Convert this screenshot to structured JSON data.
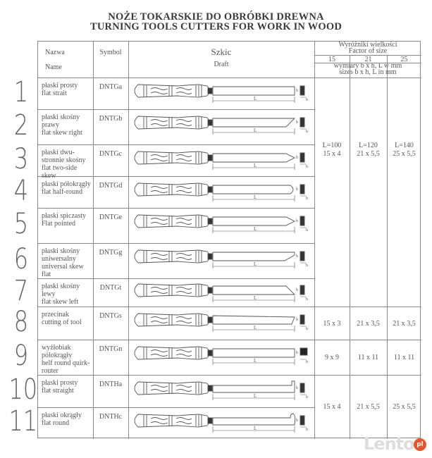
{
  "title": {
    "line1": "NOŻE TOKARSKIE DO OBRÓBKI DREWNA",
    "line2": "TURNING TOOLS CUTTERS FOR WORK IN WOOD"
  },
  "header": {
    "name_pl": "Nazwa",
    "name_en": "Name",
    "symbol": "Symbol",
    "draft_pl": "Szkic",
    "draft_en": "Draft",
    "factor_pl": "Wyróżniki wielkości",
    "factor_en": "Factor of size",
    "sizes": [
      "15",
      "21",
      "25"
    ],
    "dims_pl": "wymiary b x h, L w mm",
    "dims_en": "sizes b x h, L in mm"
  },
  "draft_labels": {
    "length": "L",
    "width": "b",
    "height": "h"
  },
  "rows": [
    {
      "number": "1",
      "name": "płaski prosty\nflat strait",
      "symbol": "DNTGa",
      "tip": "straight-tip"
    },
    {
      "number": "2",
      "name": "płaski skośny prawy\nflat skew right",
      "symbol": "DNTGb",
      "tip": "skew-right-tip"
    },
    {
      "number": "3",
      "name": "płaski dwu-stronnie skośny flat two-side skew",
      "symbol": "DNTGc",
      "tip": "two-side-skew-tip"
    },
    {
      "number": "4",
      "name": "płaski półokrągły\nflat half-round",
      "symbol": "DNTGd",
      "tip": "half-round-tip"
    },
    {
      "number": "5",
      "name": "płaski spiczasty\nFlat pointed",
      "symbol": "DNTGe",
      "tip": "pointed-tip"
    },
    {
      "number": "6",
      "name": "płaski skośny uniwersalny universal skew flat",
      "symbol": "DNTGg",
      "tip": "universal-skew-tip"
    },
    {
      "number": "7",
      "name": "płaski skośny lewy\nflat skew left",
      "symbol": "DNTGt",
      "tip": "skew-left-tip"
    },
    {
      "number": "8",
      "name": "przecinak\ncutting of tool",
      "symbol": "DNTGs",
      "tip": "parting-tip"
    },
    {
      "number": "9",
      "name": "wyżłobiak pólokrągły\nhelf round quirk-router",
      "symbol": "DNTGn",
      "tip": "gouge-tip"
    },
    {
      "number": "10",
      "name": "płaski prosty\nflat straight",
      "symbol": "DNTHa",
      "tip": "hook-straight-tip"
    },
    {
      "number": "11",
      "name": "płaski okrągły\nflat round",
      "symbol": "DNTHc",
      "tip": "hook-round-tip"
    }
  ],
  "size_groups": [
    {
      "rows": "1-7",
      "s15": "L=100\n15 x 4",
      "s21": "L=120\n21 x 5,5",
      "s25": "L=140\n25 x 5,5"
    },
    {
      "rows": "8",
      "s15": "15 x 3",
      "s21": "21 x 3,5",
      "s25": "21 x 3,5"
    },
    {
      "rows": "9",
      "s15": "9 x 9",
      "s21": "11 x 11",
      "s25": "11 x 11"
    },
    {
      "rows": "10-11",
      "s15": "15 x 4",
      "s21": "21 x 5,5",
      "s25": "25 x 5,5"
    }
  ],
  "watermark": {
    "text": "Lento",
    "badge": "pl"
  }
}
